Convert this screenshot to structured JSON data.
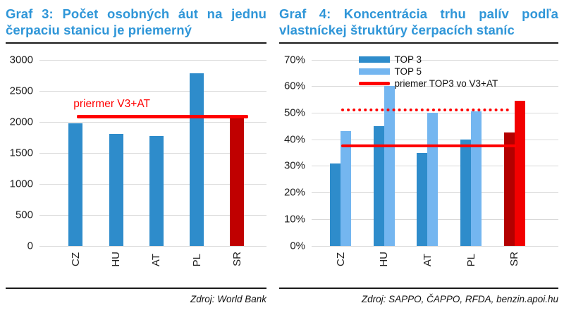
{
  "charts": [
    {
      "title": "Graf 3: Počet osobných áut na jednu čerpaciu stanicu je priemerný",
      "source": "Zdroj: World Bank",
      "chart_data": {
        "type": "bar",
        "categories": [
          "CZ",
          "HU",
          "AT",
          "PL",
          "SR"
        ],
        "values": [
          1970,
          1800,
          1770,
          2780,
          2080
        ],
        "bar_colors": [
          "#2e8ccb",
          "#2e8ccb",
          "#2e8ccb",
          "#2e8ccb",
          "#c00000"
        ],
        "title": "Graf 3: Počet osobných áut na jednu čerpaciu stanicu je priemerný",
        "xlabel": "",
        "ylabel": "",
        "ylim": [
          0,
          3000
        ],
        "grid": true,
        "yticks": [
          {
            "value": 0,
            "label": "0"
          },
          {
            "value": 500,
            "label": "500"
          },
          {
            "value": 1000,
            "label": "1000"
          },
          {
            "value": 1500,
            "label": "1500"
          },
          {
            "value": 2000,
            "label": "2000"
          },
          {
            "value": 2500,
            "label": "2500"
          },
          {
            "value": 3000,
            "label": "3000"
          }
        ],
        "annotations": [
          {
            "style": "solid",
            "value": 2080,
            "x0": 0.165,
            "x1": 0.92,
            "color": "#ff0000",
            "label": "priermer V3+AT",
            "label_x": 0.15
          }
        ]
      }
    },
    {
      "title": "Graf 4: Koncentrácia trhu palív podľa vlastníckej štruktúry čerpacích staníc",
      "source": "Zdroj: SAPPO, ČAPPO, RFDA, benzin.apoi.hu",
      "chart_data": {
        "type": "bar",
        "categories": [
          "CZ",
          "HU",
          "AT",
          "PL",
          "SR"
        ],
        "series": [
          {
            "name": "TOP 3",
            "values": [
              31,
              45,
              35,
              40,
              42.5
            ],
            "colors": [
              "#2e8ccb",
              "#2e8ccb",
              "#2e8ccb",
              "#2e8ccb",
              "#b30000"
            ]
          },
          {
            "name": "TOP 5",
            "values": [
              43,
              60,
              50,
              50.5,
              54.5
            ],
            "colors": [
              "#74b6f0",
              "#74b6f0",
              "#74b6f0",
              "#74b6f0",
              "#f20000"
            ]
          }
        ],
        "title": "Graf 4: Koncentrácia trhu palív podľa vlastníckej štruktúry čerpacích staníc",
        "xlabel": "",
        "ylabel": "",
        "ylim": [
          0,
          70
        ],
        "grid": true,
        "legend_position": "top-center-inside",
        "yticks": [
          {
            "value": 0,
            "label": "0%"
          },
          {
            "value": 10,
            "label": "10%"
          },
          {
            "value": 20,
            "label": "20%"
          },
          {
            "value": 30,
            "label": "30%"
          },
          {
            "value": 40,
            "label": "40%"
          },
          {
            "value": 50,
            "label": "50%"
          },
          {
            "value": 60,
            "label": "60%"
          },
          {
            "value": 70,
            "label": "70%"
          }
        ],
        "legend": [
          {
            "swatch": "rect",
            "color": "#2e8ccb",
            "label": "TOP 3"
          },
          {
            "swatch": "rect",
            "color": "#74b6f0",
            "label": "TOP 5"
          },
          {
            "swatch": "line",
            "color": "#ff0000",
            "label": "priemer TOP3 vo V3+AT"
          }
        ],
        "annotations": [
          {
            "style": "dotted",
            "value": 51,
            "x0": 0.12,
            "x1": 0.8,
            "color": "#ff0000"
          },
          {
            "style": "solid",
            "value": 37.5,
            "x0": 0.12,
            "x1": 0.828,
            "color": "#ff0000"
          }
        ]
      }
    }
  ],
  "colors": {
    "title_blue": "#2f96d8",
    "bar_blue": "#2e8ccb",
    "bar_light_blue": "#74b6f0",
    "bar_dark_red": "#c00000",
    "bar_bright_red": "#f20000",
    "line_red": "#ff0000",
    "gridline": "#d9d9d9"
  }
}
